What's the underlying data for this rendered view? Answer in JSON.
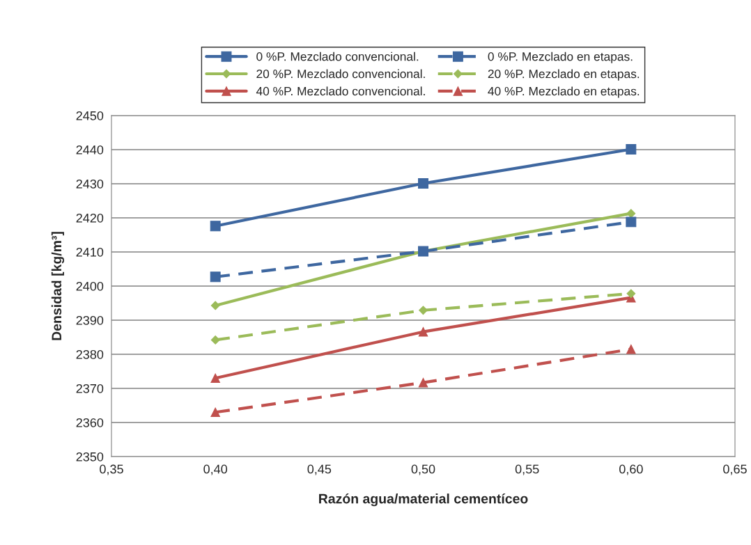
{
  "chart_data": {
    "type": "line",
    "xlabel": "Razón agua/material cementíceo",
    "ylabel": "Densidad [kg/m³]",
    "x": [
      0.4,
      0.5,
      0.6
    ],
    "series": [
      {
        "name": "0 %P. Mezclado convencional.",
        "color": "#3e67a0",
        "marker": "square",
        "line_style": "solid",
        "values": [
          2417.6,
          2430.1,
          2440.1
        ]
      },
      {
        "name": "0 %P. Mezclado en etapas.",
        "color": "#3e67a0",
        "marker": "square",
        "line_style": "dashed",
        "values": [
          2402.7,
          2410.2,
          2418.8
        ]
      },
      {
        "name": "20 %P. Mezclado convencional.",
        "color": "#9bbb59",
        "marker": "diamond",
        "line_style": "solid",
        "values": [
          2394.3,
          2410.2,
          2421.3
        ]
      },
      {
        "name": "20 %P. Mezclado en etapas.",
        "color": "#9bbb59",
        "marker": "diamond",
        "line_style": "dashed",
        "values": [
          2384.2,
          2392.9,
          2397.8
        ]
      },
      {
        "name": "40 %P. Mezclado convencional.",
        "color": "#c0504d",
        "marker": "triangle",
        "line_style": "solid",
        "values": [
          2373.0,
          2386.6,
          2396.6
        ]
      },
      {
        "name": "40 %P. Mezclado en etapas.",
        "color": "#c0504d",
        "marker": "triangle",
        "line_style": "dashed",
        "values": [
          2363.0,
          2371.7,
          2381.5
        ]
      }
    ],
    "xlim": [
      0.35,
      0.65
    ],
    "xticks": [
      {
        "value": 0.35,
        "label": "0,35"
      },
      {
        "value": 0.4,
        "label": "0,40"
      },
      {
        "value": 0.45,
        "label": "0,45"
      },
      {
        "value": 0.5,
        "label": "0,50"
      },
      {
        "value": 0.55,
        "label": "0,55"
      },
      {
        "value": 0.6,
        "label": "0,60"
      },
      {
        "value": 0.65,
        "label": "0,65"
      }
    ],
    "ylim": [
      2350,
      2450
    ],
    "yticks": [
      2350,
      2360,
      2370,
      2380,
      2390,
      2400,
      2410,
      2420,
      2430,
      2440,
      2450
    ],
    "grid": "y",
    "legend": "top"
  }
}
